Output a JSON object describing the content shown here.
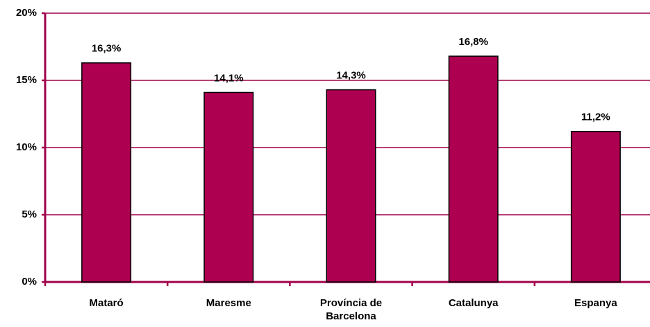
{
  "chart_data": {
    "type": "bar",
    "categories": [
      "Mataró",
      "Maresme",
      "Província de Barcelona",
      "Catalunya",
      "Espanya"
    ],
    "values": [
      16.3,
      14.1,
      14.3,
      16.8,
      11.2
    ],
    "value_labels": [
      "16,3%",
      "14,1%",
      "14,3%",
      "16,8%",
      "11,2%"
    ],
    "color": "#ad0050",
    "ylim": [
      0,
      20
    ],
    "yticks": [
      {
        "value": 0,
        "label": "0%"
      },
      {
        "value": 5,
        "label": "5%"
      },
      {
        "value": 10,
        "label": "10%"
      },
      {
        "value": 15,
        "label": "15%"
      },
      {
        "value": 20,
        "label": "20%"
      }
    ],
    "grid": true
  }
}
